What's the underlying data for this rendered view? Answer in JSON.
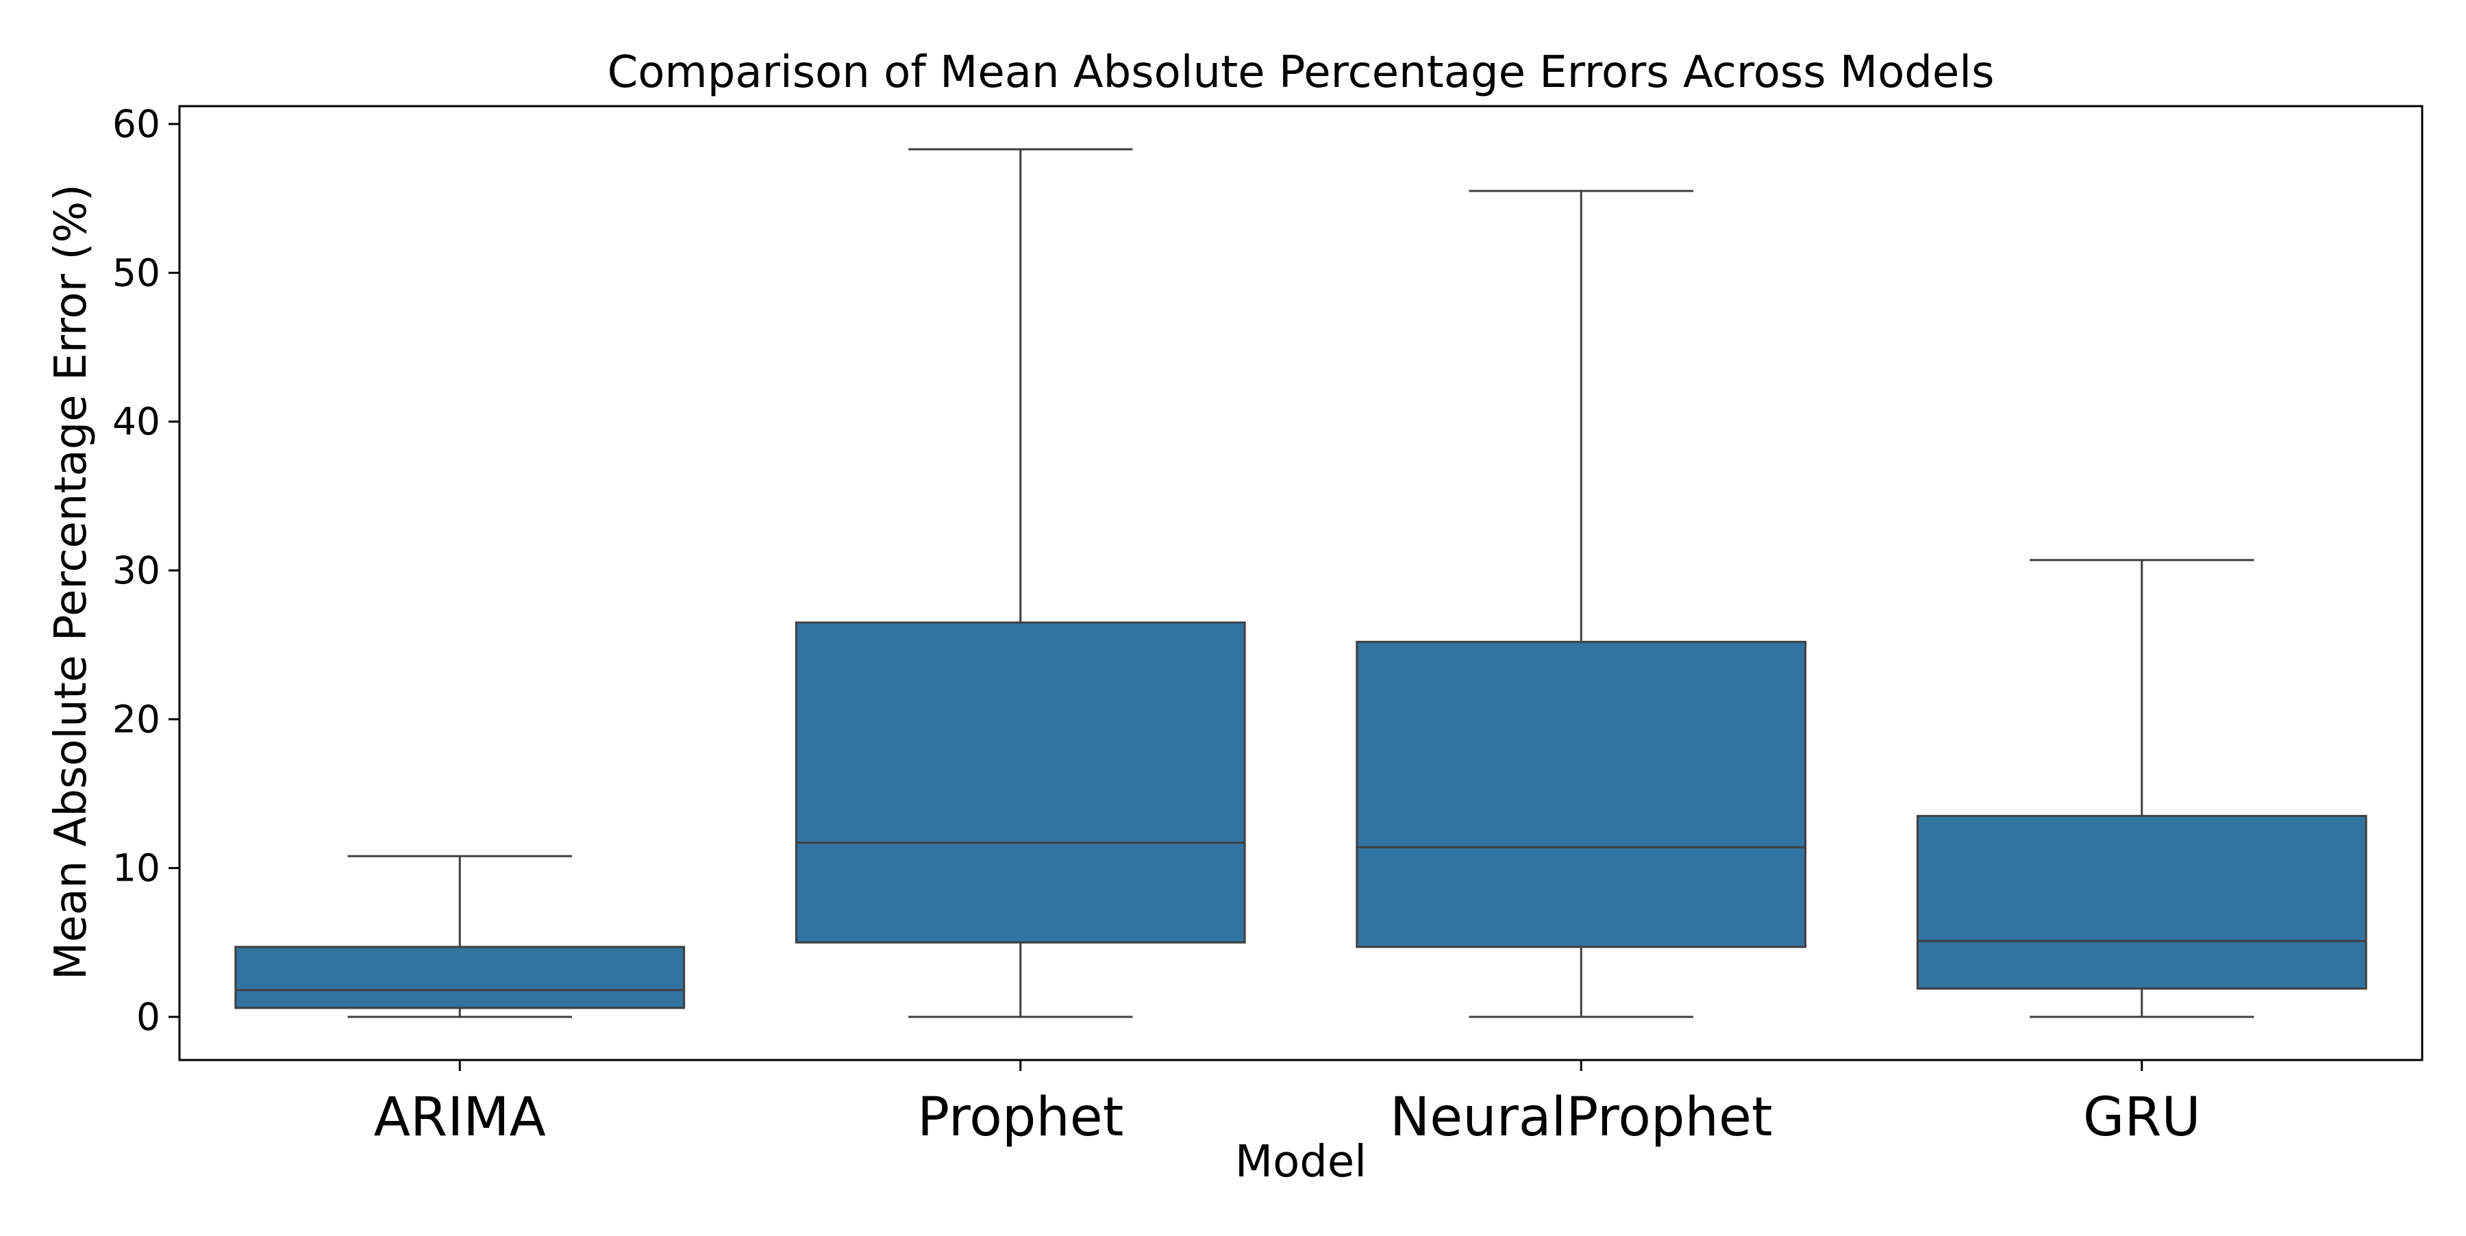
{
  "chart_data": {
    "type": "box",
    "title": "Comparison of Mean Absolute Percentage Errors Across Models",
    "xlabel": "Model",
    "ylabel": "Mean Absolute Percentage Error (%)",
    "ylim": [
      -2.9,
      61.2
    ],
    "yticks": [
      0,
      10,
      20,
      30,
      40,
      50,
      60
    ],
    "grid": false,
    "colors": {
      "box_fill": "#3274a1",
      "line": "#3f3f3f"
    },
    "categories": [
      "ARIMA",
      "Prophet",
      "NeuralProphet",
      "GRU"
    ],
    "boxes": [
      {
        "category": "ARIMA",
        "whisker_low": 0.0,
        "q1": 0.6,
        "median": 1.8,
        "q3": 4.7,
        "whisker_high": 10.8
      },
      {
        "category": "Prophet",
        "whisker_low": 0.0,
        "q1": 5.0,
        "median": 11.7,
        "q3": 26.5,
        "whisker_high": 58.3
      },
      {
        "category": "NeuralProphet",
        "whisker_low": 0.0,
        "q1": 4.7,
        "median": 11.4,
        "q3": 25.2,
        "whisker_high": 55.5
      },
      {
        "category": "GRU",
        "whisker_low": 0.0,
        "q1": 1.9,
        "median": 5.1,
        "q3": 13.5,
        "whisker_high": 30.7
      }
    ]
  }
}
